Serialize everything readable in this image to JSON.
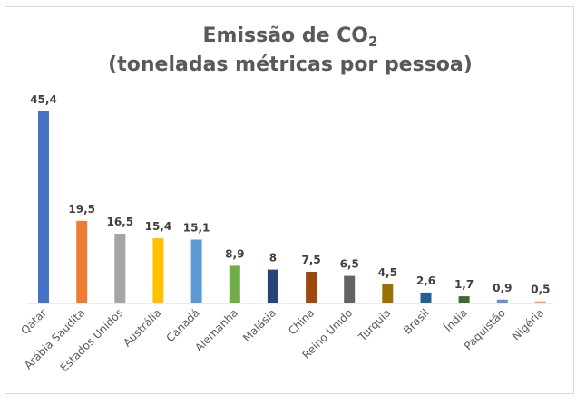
{
  "chart_data": {
    "type": "bar",
    "title_main": "Emissão de CO",
    "title_subscript": "2",
    "subtitle": "(toneladas métricas por pessoa)",
    "categories": [
      "Qatar",
      "Arábia Saudita",
      "Estados Unidos",
      "Austrália",
      "Canadá",
      "Alemanha",
      "Malásia",
      "China",
      "Reino Unido",
      "Turquia",
      "Brasil",
      "Índia",
      "Paquistão",
      "Nigéria"
    ],
    "values": [
      45.4,
      19.5,
      16.5,
      15.4,
      15.1,
      8.9,
      8,
      7.5,
      6.5,
      4.5,
      2.6,
      1.7,
      0.9,
      0.5
    ],
    "value_labels": [
      "45,4",
      "19,5",
      "16,5",
      "15,4",
      "15,1",
      "8,9",
      "8",
      "7,5",
      "6,5",
      "4,5",
      "2,6",
      "1,7",
      "0,9",
      "0,5"
    ],
    "colors": [
      "#4472c4",
      "#ed7d31",
      "#a5a5a5",
      "#ffc000",
      "#5b9bd5",
      "#70ad47",
      "#264478",
      "#9e480e",
      "#636363",
      "#997300",
      "#255e91",
      "#43682b",
      "#698ed0",
      "#f1975a"
    ],
    "ylim": [
      0,
      45.4
    ],
    "grid": false,
    "legend": "none"
  }
}
